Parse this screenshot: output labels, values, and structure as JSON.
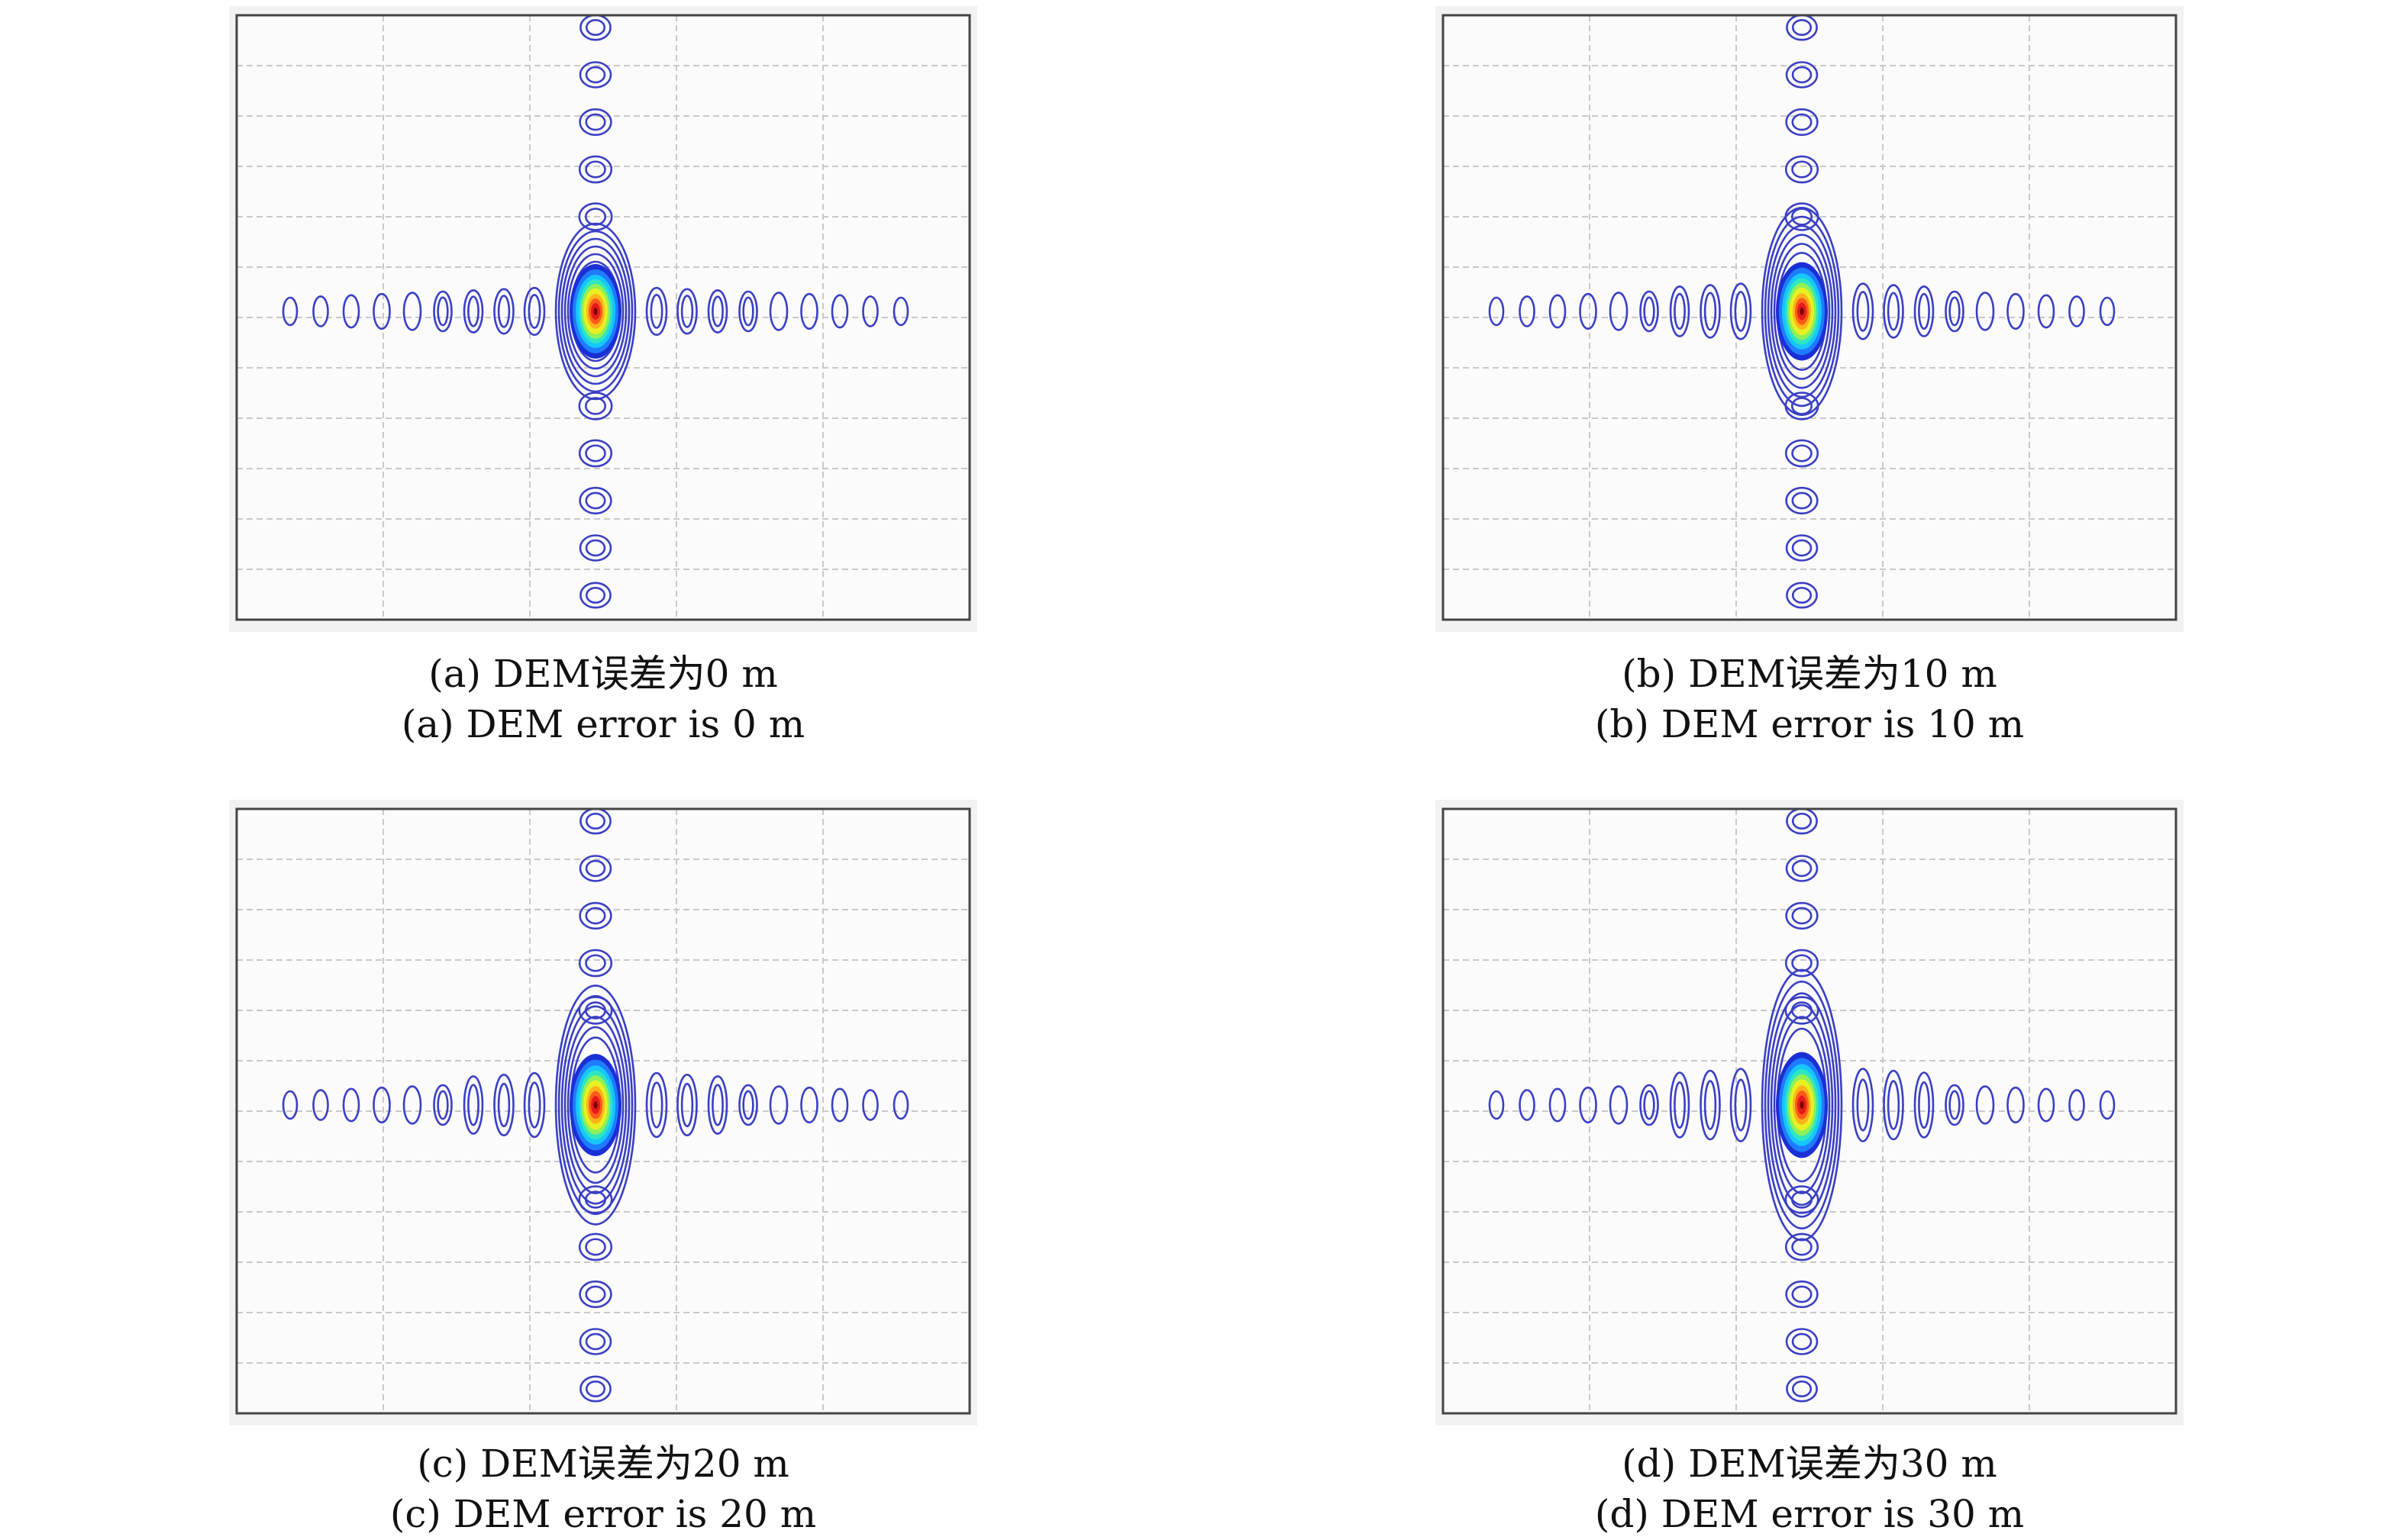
{
  "figure": {
    "panels": [
      {
        "id": "a",
        "caption_cn": "(a) DEM误差为0 m",
        "caption_en": "(a) DEM error is 0 m",
        "dem_error_m": 0
      },
      {
        "id": "b",
        "caption_cn": "(b) DEM误差为10 m",
        "caption_en": "(b) DEM error is 10 m",
        "dem_error_m": 10
      },
      {
        "id": "c",
        "caption_cn": "(c) DEM误差为20 m",
        "caption_en": "(c) DEM error is 20 m",
        "dem_error_m": 20
      },
      {
        "id": "d",
        "caption_cn": "(d) DEM误差为30 m",
        "caption_en": "(d) DEM error is 30 m",
        "dem_error_m": 30
      }
    ]
  },
  "colors": {
    "contour_outer": "#3a3fc4",
    "grid_line": "#c9c9c9",
    "frame": "#444444",
    "peak": "#e41a1c"
  }
}
